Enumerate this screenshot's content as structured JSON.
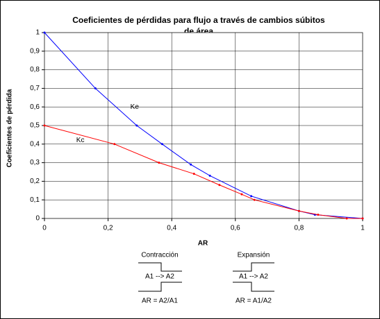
{
  "chart_data": {
    "type": "line",
    "title": [
      "Coeficientes de pérdidas para flujo a través de cambios súbitos",
      "de área"
    ],
    "x_label": "AR",
    "y_label": "Coeficientes de pérdida",
    "xlim": [
      0,
      1
    ],
    "ylim": [
      0,
      1
    ],
    "xticks": [
      0,
      {
        "value": 0.2,
        "label": "0,2"
      },
      {
        "value": 0.4,
        "label": "0,4"
      },
      {
        "value": 0.6,
        "label": "0,6"
      },
      {
        "value": 0.8,
        "label": "0,8"
      },
      1
    ],
    "yticks": [
      0,
      {
        "value": 0.1,
        "label": "0,1"
      },
      {
        "value": 0.2,
        "label": "0,2"
      },
      {
        "value": 0.3,
        "label": "0,3"
      },
      {
        "value": 0.4,
        "label": "0,4"
      },
      {
        "value": 0.5,
        "label": "0,5"
      },
      {
        "value": 0.6,
        "label": "0,6"
      },
      {
        "value": 0.7,
        "label": "0,7"
      },
      {
        "value": 0.8,
        "label": "0,8"
      },
      {
        "value": 0.9,
        "label": "0,9"
      },
      1
    ],
    "grid": true,
    "series": [
      {
        "name": "Ke",
        "color": "#0000ff",
        "x": [
          0,
          0.16,
          0.29,
          0.37,
          0.46,
          0.52,
          0.65,
          0.8,
          0.85,
          1
        ],
        "values": [
          1,
          0.7,
          0.5,
          0.4,
          0.29,
          0.23,
          0.12,
          0.04,
          0.02,
          0
        ]
      },
      {
        "name": "Kc",
        "color": "#ff0000",
        "x": [
          0,
          0.22,
          0.36,
          0.47,
          0.55,
          0.62,
          0.66,
          0.8,
          0.86,
          0.95,
          1
        ],
        "values": [
          0.5,
          0.4,
          0.3,
          0.24,
          0.18,
          0.13,
          0.1,
          0.04,
          0.02,
          0,
          0
        ]
      }
    ],
    "series_labels": [
      {
        "text": "Ke",
        "x": 0.27,
        "y": 0.6
      },
      {
        "text": "Kc",
        "x": 0.1,
        "y": 0.42
      }
    ],
    "diagrams": [
      {
        "title": "Contracción",
        "flow": "A1 --> A2",
        "formula": "AR = A2/A1"
      },
      {
        "title": "Expansión",
        "flow": "A1 --> A2",
        "formula": "AR = A1/A2"
      }
    ]
  }
}
